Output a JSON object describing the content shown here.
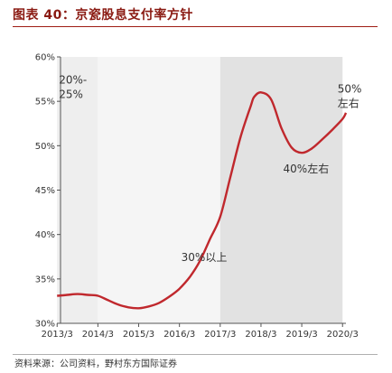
{
  "figure_title": "图表 40：京瓷股息支付率方针",
  "source": "资料来源：公司资料，野村东方国际证券",
  "chart_data": {
    "type": "line",
    "x_ticks": [
      "2013/3",
      "2014/3",
      "2015/3",
      "2016/3",
      "2017/3",
      "2018/3",
      "2019/3",
      "2020/3"
    ],
    "y_ticks": [
      "30%",
      "35%",
      "40%",
      "45%",
      "50%",
      "55%",
      "60%"
    ],
    "ylim": [
      30,
      60
    ],
    "y_unit": "%",
    "grid": false,
    "series": [
      {
        "color": "#c0282d",
        "x": [
          "2013/3",
          "2013/6",
          "2013/9",
          "2013/12",
          "2014/3",
          "2014/6",
          "2014/9",
          "2014/12",
          "2015/3",
          "2015/6",
          "2015/9",
          "2015/12",
          "2016/3",
          "2016/6",
          "2016/9",
          "2016/12",
          "2017/3",
          "2017/6",
          "2017/9",
          "2017/12",
          "2018/1",
          "2018/3",
          "2018/6",
          "2018/9",
          "2018/12",
          "2019/3",
          "2019/6",
          "2019/9",
          "2019/12",
          "2020/3",
          "2020/4"
        ],
        "y": [
          33.1,
          33.2,
          33.3,
          33.2,
          33.1,
          32.6,
          32.1,
          31.8,
          31.7,
          31.9,
          32.3,
          33.0,
          33.9,
          35.2,
          37.0,
          39.5,
          42.0,
          46.5,
          51.0,
          54.5,
          55.5,
          56.0,
          55.2,
          52.0,
          49.8,
          49.2,
          49.7,
          50.7,
          51.8,
          53.0,
          53.7
        ]
      }
    ],
    "bands": [
      {
        "from": "2013/3",
        "to": "2014/3",
        "color": "#eeeeee",
        "label_lines": [
          "20%-",
          "25%"
        ]
      },
      {
        "from": "2014/3",
        "to": "2017/3",
        "color": "#f5f5f5",
        "label_lines": [
          "30%以上"
        ]
      },
      {
        "from": "2017/3",
        "to": "2020/3",
        "color": "#e2e2e2",
        "label_lines": [
          "40%左右"
        ]
      }
    ],
    "annotations": [
      {
        "lines": [
          "20%-",
          "25%"
        ],
        "x": "2013/3",
        "y": 57
      },
      {
        "lines": [
          "30%以上"
        ],
        "x": "2016/3",
        "y": 37
      },
      {
        "lines": [
          "40%左右"
        ],
        "x": "2018/9",
        "y": 47
      },
      {
        "lines": [
          "50%",
          "左右"
        ],
        "x": "2020/1",
        "y": 56
      }
    ]
  }
}
